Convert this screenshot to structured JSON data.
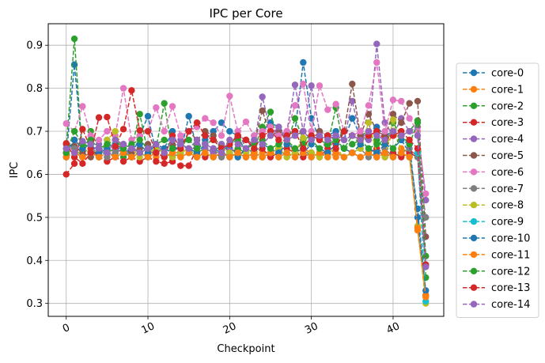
{
  "chart_data": {
    "type": "line",
    "title": "IPC per Core",
    "xlabel": "Checkpoint",
    "ylabel": "IPC",
    "xlim": [
      -2.2,
      46.2
    ],
    "ylim": [
      0.27,
      0.95
    ],
    "xticks": [
      0,
      10,
      20,
      30,
      40
    ],
    "yticks": [
      0.3,
      0.4,
      0.5,
      0.6,
      0.7,
      0.8,
      0.9
    ],
    "grid": true,
    "legend_position": "outside-right",
    "line_style": "dashed",
    "marker": "circle",
    "x": [
      0,
      1,
      2,
      3,
      4,
      5,
      6,
      7,
      8,
      9,
      10,
      11,
      12,
      13,
      14,
      15,
      16,
      17,
      18,
      19,
      20,
      21,
      22,
      23,
      24,
      25,
      26,
      27,
      28,
      29,
      30,
      31,
      32,
      33,
      34,
      35,
      36,
      37,
      38,
      39,
      40,
      41,
      42,
      43,
      44
    ],
    "series": [
      {
        "name": "core-0",
        "color": "#1f77b4",
        "values": [
          0.64,
          0.855,
          0.65,
          0.66,
          0.64,
          0.68,
          0.65,
          0.67,
          0.64,
          0.69,
          0.735,
          0.65,
          0.66,
          0.7,
          0.65,
          0.735,
          0.66,
          0.68,
          0.7,
          0.72,
          0.7,
          0.69,
          0.65,
          0.69,
          0.7,
          0.72,
          0.71,
          0.69,
          0.7,
          0.86,
          0.73,
          0.68,
          0.69,
          0.7,
          0.68,
          0.73,
          0.69,
          0.7,
          0.71,
          0.69,
          0.7,
          0.68,
          0.65,
          0.52,
          0.32
        ]
      },
      {
        "name": "core-1",
        "color": "#ff7f0e",
        "values": [
          0.65,
          0.68,
          0.64,
          0.65,
          0.66,
          0.65,
          0.66,
          0.65,
          0.64,
          0.65,
          0.66,
          0.64,
          0.65,
          0.64,
          0.66,
          0.65,
          0.64,
          0.65,
          0.64,
          0.65,
          0.64,
          0.66,
          0.65,
          0.64,
          0.65,
          0.64,
          0.66,
          0.69,
          0.64,
          0.66,
          0.65,
          0.64,
          0.65,
          0.64,
          0.66,
          0.65,
          0.64,
          0.65,
          0.64,
          0.65,
          0.7,
          0.66,
          0.65,
          0.47,
          0.32
        ]
      },
      {
        "name": "core-2",
        "color": "#2ca02c",
        "values": [
          0.66,
          0.915,
          0.64,
          0.7,
          0.66,
          0.65,
          0.66,
          0.64,
          0.66,
          0.74,
          0.65,
          0.66,
          0.765,
          0.65,
          0.67,
          0.66,
          0.65,
          0.66,
          0.65,
          0.67,
          0.65,
          0.66,
          0.65,
          0.66,
          0.71,
          0.745,
          0.66,
          0.67,
          0.73,
          0.68,
          0.69,
          0.68,
          0.67,
          0.755,
          0.66,
          0.69,
          0.67,
          0.69,
          0.68,
          0.66,
          0.72,
          0.69,
          0.7,
          0.725,
          0.36
        ]
      },
      {
        "name": "core-3",
        "color": "#d62728",
        "values": [
          0.6,
          0.625,
          0.705,
          0.66,
          0.64,
          0.63,
          0.64,
          0.63,
          0.64,
          0.63,
          0.64,
          0.63,
          0.625,
          0.63,
          0.62,
          0.62,
          0.66,
          0.64,
          0.65,
          0.64,
          0.66,
          0.65,
          0.64,
          0.65,
          0.66,
          0.64,
          0.65,
          0.66,
          0.65,
          0.64,
          0.65,
          0.64,
          0.66,
          0.65,
          0.64,
          0.65,
          0.64,
          0.65,
          0.66,
          0.64,
          0.65,
          0.64,
          0.65,
          0.64,
          0.39
        ]
      },
      {
        "name": "core-4",
        "color": "#9467bd",
        "values": [
          0.64,
          0.68,
          0.66,
          0.65,
          0.67,
          0.64,
          0.66,
          0.65,
          0.665,
          0.65,
          0.66,
          0.67,
          0.65,
          0.66,
          0.68,
          0.65,
          0.67,
          0.66,
          0.65,
          0.67,
          0.66,
          0.7,
          0.66,
          0.67,
          0.78,
          0.7,
          0.69,
          0.7,
          0.808,
          0.7,
          0.806,
          0.7,
          0.69,
          0.69,
          0.68,
          0.77,
          0.69,
          0.68,
          0.903,
          0.72,
          0.69,
          0.73,
          0.7,
          0.71,
          0.54
        ]
      },
      {
        "name": "core-5",
        "color": "#8c564b",
        "values": [
          0.67,
          0.665,
          0.65,
          0.64,
          0.66,
          0.65,
          0.67,
          0.66,
          0.65,
          0.66,
          0.67,
          0.65,
          0.66,
          0.67,
          0.65,
          0.7,
          0.68,
          0.7,
          0.69,
          0.66,
          0.67,
          0.69,
          0.68,
          0.67,
          0.748,
          0.69,
          0.7,
          0.68,
          0.69,
          0.7,
          0.68,
          0.7,
          0.69,
          0.68,
          0.7,
          0.81,
          0.69,
          0.74,
          0.7,
          0.69,
          0.74,
          0.72,
          0.765,
          0.77,
          0.455
        ]
      },
      {
        "name": "core-6",
        "color": "#e377c2",
        "values": [
          0.718,
          0.7,
          0.758,
          0.69,
          0.68,
          0.7,
          0.69,
          0.8,
          0.68,
          0.69,
          0.7,
          0.755,
          0.7,
          0.758,
          0.69,
          0.7,
          0.71,
          0.73,
          0.72,
          0.69,
          0.782,
          0.7,
          0.722,
          0.69,
          0.7,
          0.71,
          0.69,
          0.7,
          0.76,
          0.81,
          0.7,
          0.806,
          0.75,
          0.763,
          0.7,
          0.69,
          0.7,
          0.76,
          0.86,
          0.7,
          0.773,
          0.77,
          0.73,
          0.7,
          0.555
        ]
      },
      {
        "name": "core-7",
        "color": "#7f7f7f",
        "values": [
          0.65,
          0.66,
          0.64,
          0.65,
          0.66,
          0.64,
          0.65,
          0.66,
          0.64,
          0.65,
          0.64,
          0.66,
          0.65,
          0.64,
          0.65,
          0.66,
          0.64,
          0.65,
          0.66,
          0.64,
          0.65,
          0.64,
          0.66,
          0.65,
          0.64,
          0.65,
          0.66,
          0.64,
          0.65,
          0.66,
          0.64,
          0.65,
          0.685,
          0.65,
          0.64,
          0.65,
          0.66,
          0.64,
          0.65,
          0.66,
          0.64,
          0.65,
          0.66,
          0.64,
          0.5
        ]
      },
      {
        "name": "core-8",
        "color": "#bcbd22",
        "values": [
          0.65,
          0.64,
          0.66,
          0.65,
          0.64,
          0.68,
          0.7,
          0.65,
          0.66,
          0.64,
          0.65,
          0.66,
          0.65,
          0.64,
          0.65,
          0.66,
          0.64,
          0.65,
          0.64,
          0.66,
          0.65,
          0.64,
          0.65,
          0.66,
          0.64,
          0.65,
          0.66,
          0.64,
          0.65,
          0.685,
          0.65,
          0.64,
          0.65,
          0.66,
          0.64,
          0.65,
          0.66,
          0.72,
          0.65,
          0.64,
          0.727,
          0.65,
          0.64,
          0.48,
          0.3
        ]
      },
      {
        "name": "core-9",
        "color": "#17becf",
        "values": [
          0.64,
          0.65,
          0.64,
          0.65,
          0.64,
          0.65,
          0.64,
          0.65,
          0.64,
          0.65,
          0.64,
          0.65,
          0.64,
          0.65,
          0.64,
          0.65,
          0.64,
          0.65,
          0.64,
          0.65,
          0.64,
          0.65,
          0.64,
          0.65,
          0.64,
          0.65,
          0.64,
          0.65,
          0.64,
          0.65,
          0.64,
          0.65,
          0.64,
          0.65,
          0.64,
          0.65,
          0.64,
          0.65,
          0.64,
          0.65,
          0.64,
          0.65,
          0.64,
          0.65,
          0.305
        ]
      },
      {
        "name": "core-10",
        "color": "#1f77b4",
        "values": [
          0.65,
          0.68,
          0.66,
          0.67,
          0.65,
          0.66,
          0.67,
          0.65,
          0.66,
          0.67,
          0.65,
          0.67,
          0.66,
          0.65,
          0.67,
          0.66,
          0.65,
          0.67,
          0.66,
          0.65,
          0.67,
          0.64,
          0.66,
          0.65,
          0.67,
          0.66,
          0.65,
          0.67,
          0.66,
          0.65,
          0.67,
          0.66,
          0.65,
          0.67,
          0.66,
          0.65,
          0.67,
          0.66,
          0.65,
          0.67,
          0.66,
          0.68,
          0.67,
          0.5,
          0.33
        ]
      },
      {
        "name": "core-11",
        "color": "#ff7f0e",
        "values": [
          0.64,
          0.65,
          0.64,
          0.65,
          0.64,
          0.65,
          0.64,
          0.65,
          0.64,
          0.65,
          0.64,
          0.65,
          0.64,
          0.65,
          0.64,
          0.65,
          0.64,
          0.65,
          0.64,
          0.65,
          0.64,
          0.65,
          0.64,
          0.65,
          0.64,
          0.65,
          0.64,
          0.65,
          0.64,
          0.65,
          0.64,
          0.65,
          0.64,
          0.65,
          0.64,
          0.65,
          0.64,
          0.65,
          0.64,
          0.65,
          0.64,
          0.65,
          0.64,
          0.475,
          0.315
        ]
      },
      {
        "name": "core-12",
        "color": "#2ca02c",
        "values": [
          0.65,
          0.7,
          0.67,
          0.68,
          0.66,
          0.67,
          0.68,
          0.66,
          0.67,
          0.68,
          0.66,
          0.67,
          0.68,
          0.66,
          0.67,
          0.68,
          0.66,
          0.67,
          0.68,
          0.66,
          0.67,
          0.68,
          0.66,
          0.67,
          0.68,
          0.66,
          0.67,
          0.68,
          0.66,
          0.67,
          0.68,
          0.66,
          0.67,
          0.68,
          0.66,
          0.67,
          0.68,
          0.66,
          0.67,
          0.68,
          0.66,
          0.69,
          0.67,
          0.72,
          0.41
        ]
      },
      {
        "name": "core-13",
        "color": "#d62728",
        "values": [
          0.672,
          0.64,
          0.625,
          0.65,
          0.732,
          0.733,
          0.665,
          0.705,
          0.795,
          0.702,
          0.7,
          0.65,
          0.64,
          0.69,
          0.66,
          0.7,
          0.72,
          0.69,
          0.68,
          0.66,
          0.67,
          0.69,
          0.68,
          0.66,
          0.69,
          0.7,
          0.68,
          0.69,
          0.7,
          0.66,
          0.69,
          0.68,
          0.69,
          0.66,
          0.7,
          0.69,
          0.68,
          0.69,
          0.7,
          0.68,
          0.69,
          0.7,
          0.68,
          0.66,
          0.39
        ]
      },
      {
        "name": "core-14",
        "color": "#9467bd",
        "values": [
          0.66,
          0.65,
          0.677,
          0.67,
          0.66,
          0.65,
          0.68,
          0.67,
          0.66,
          0.65,
          0.66,
          0.67,
          0.65,
          0.68,
          0.67,
          0.66,
          0.68,
          0.67,
          0.66,
          0.65,
          0.68,
          0.67,
          0.66,
          0.68,
          0.67,
          0.69,
          0.71,
          0.68,
          0.69,
          0.7,
          0.68,
          0.69,
          0.68,
          0.69,
          0.68,
          0.69,
          0.68,
          0.7,
          0.69,
          0.68,
          0.7,
          0.69,
          0.7,
          0.69,
          0.385
        ]
      }
    ]
  }
}
